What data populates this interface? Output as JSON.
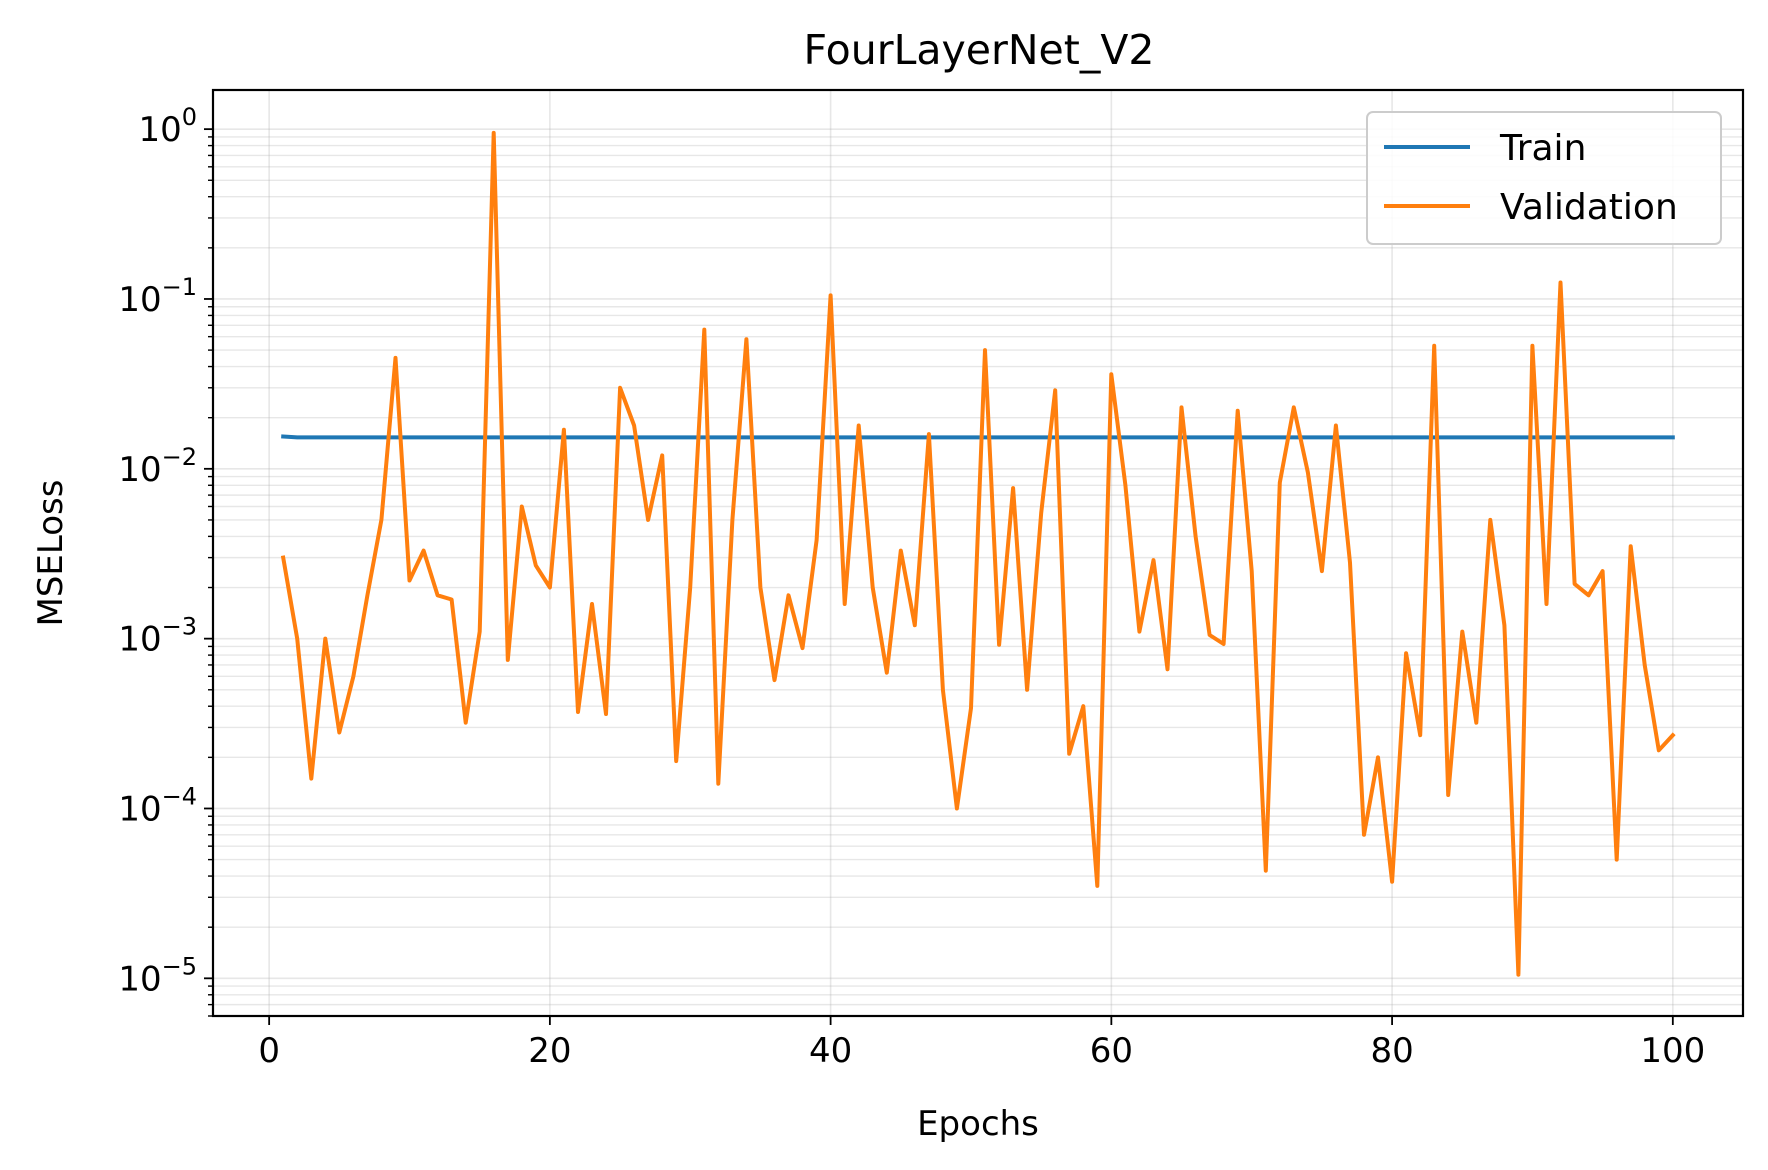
{
  "chart_data": {
    "type": "line",
    "title": "FourLayerNet_V2",
    "xlabel": "Epochs",
    "ylabel": "MSELoss",
    "yscale": "log",
    "xlim": [
      -4,
      105
    ],
    "ylim": [
      6e-06,
      1.7
    ],
    "grid": true,
    "legend_position": "top-right",
    "x_ticks": [
      0,
      20,
      40,
      60,
      80,
      100
    ],
    "x_tick_labels": [
      "0",
      "20",
      "40",
      "60",
      "80",
      "100"
    ],
    "y_ticks": [
      1e-05,
      0.0001,
      0.001,
      0.01,
      0.1,
      1
    ],
    "y_tick_labels": [
      {
        "base": "10",
        "exp": "−5"
      },
      {
        "base": "10",
        "exp": "−4"
      },
      {
        "base": "10",
        "exp": "−3"
      },
      {
        "base": "10",
        "exp": "−2"
      },
      {
        "base": "10",
        "exp": "−1"
      },
      {
        "base": "10",
        "exp": "0"
      }
    ],
    "x": [
      1,
      2,
      3,
      4,
      5,
      6,
      7,
      8,
      9,
      10,
      11,
      12,
      13,
      14,
      15,
      16,
      17,
      18,
      19,
      20,
      21,
      22,
      23,
      24,
      25,
      26,
      27,
      28,
      29,
      30,
      31,
      32,
      33,
      34,
      35,
      36,
      37,
      38,
      39,
      40,
      41,
      42,
      43,
      44,
      45,
      46,
      47,
      48,
      49,
      50,
      51,
      52,
      53,
      54,
      55,
      56,
      57,
      58,
      59,
      60,
      61,
      62,
      63,
      64,
      65,
      66,
      67,
      68,
      69,
      70,
      71,
      72,
      73,
      74,
      75,
      76,
      77,
      78,
      79,
      80,
      81,
      82,
      83,
      84,
      85,
      86,
      87,
      88,
      89,
      90,
      91,
      92,
      93,
      94,
      95,
      96,
      97,
      98,
      99,
      100
    ],
    "series": [
      {
        "name": "Train",
        "color": "#1f77b4",
        "values": [
          0.0155,
          0.0153,
          0.0153,
          0.0153,
          0.0153,
          0.0153,
          0.0153,
          0.0153,
          0.0153,
          0.0153,
          0.0153,
          0.0153,
          0.0153,
          0.0153,
          0.0153,
          0.0153,
          0.0153,
          0.0153,
          0.0153,
          0.0153,
          0.0153,
          0.0153,
          0.0153,
          0.0153,
          0.0153,
          0.0153,
          0.0153,
          0.0153,
          0.0153,
          0.0153,
          0.0153,
          0.0153,
          0.0153,
          0.0153,
          0.0153,
          0.0153,
          0.0153,
          0.0153,
          0.0153,
          0.0153,
          0.0153,
          0.0153,
          0.0153,
          0.0153,
          0.0153,
          0.0153,
          0.0153,
          0.0153,
          0.0153,
          0.0153,
          0.0153,
          0.0153,
          0.0153,
          0.0153,
          0.0153,
          0.0153,
          0.0153,
          0.0153,
          0.0153,
          0.0153,
          0.0153,
          0.0153,
          0.0153,
          0.0153,
          0.0153,
          0.0153,
          0.0153,
          0.0153,
          0.0153,
          0.0153,
          0.0153,
          0.0153,
          0.0153,
          0.0153,
          0.0153,
          0.0153,
          0.0153,
          0.0153,
          0.0153,
          0.0153,
          0.0153,
          0.0153,
          0.0153,
          0.0153,
          0.0153,
          0.0153,
          0.0153,
          0.0153,
          0.0153,
          0.0153,
          0.0153,
          0.0153,
          0.0153,
          0.0153,
          0.0153,
          0.0153,
          0.0153,
          0.0153,
          0.0153,
          0.0153
        ]
      },
      {
        "name": "Validation",
        "color": "#ff7f0e",
        "values": [
          0.003,
          0.001,
          0.00015,
          0.001,
          0.00028,
          0.0006,
          0.0018,
          0.005,
          0.045,
          0.0022,
          0.0033,
          0.0018,
          0.0017,
          0.00032,
          0.0011,
          0.95,
          0.00075,
          0.006,
          0.0027,
          0.002,
          0.017,
          0.00037,
          0.0016,
          0.00036,
          0.03,
          0.018,
          0.005,
          0.012,
          0.00019,
          0.002,
          0.066,
          0.00014,
          0.005,
          0.058,
          0.002,
          0.00057,
          0.0018,
          0.00088,
          0.0038,
          0.105,
          0.0016,
          0.018,
          0.002,
          0.00063,
          0.0033,
          0.0012,
          0.016,
          0.0005,
          0.0001,
          0.00039,
          0.05,
          0.00092,
          0.0077,
          0.0005,
          0.0055,
          0.029,
          0.00021,
          0.0004,
          3.5e-05,
          0.036,
          0.008,
          0.0011,
          0.0029,
          0.00066,
          0.023,
          0.004,
          0.00105,
          0.00093,
          0.022,
          0.0025,
          4.3e-05,
          0.0083,
          0.023,
          0.0095,
          0.0025,
          0.018,
          0.0028,
          7e-05,
          0.0002,
          3.7e-05,
          0.00082,
          0.00027,
          0.053,
          0.00012,
          0.0011,
          0.00032,
          0.005,
          0.0012,
          1.05e-05,
          0.053,
          0.0016,
          0.125,
          0.0021,
          0.0018,
          0.0025,
          5e-05,
          0.0035,
          0.0007,
          0.00022,
          0.00027
        ]
      }
    ]
  }
}
